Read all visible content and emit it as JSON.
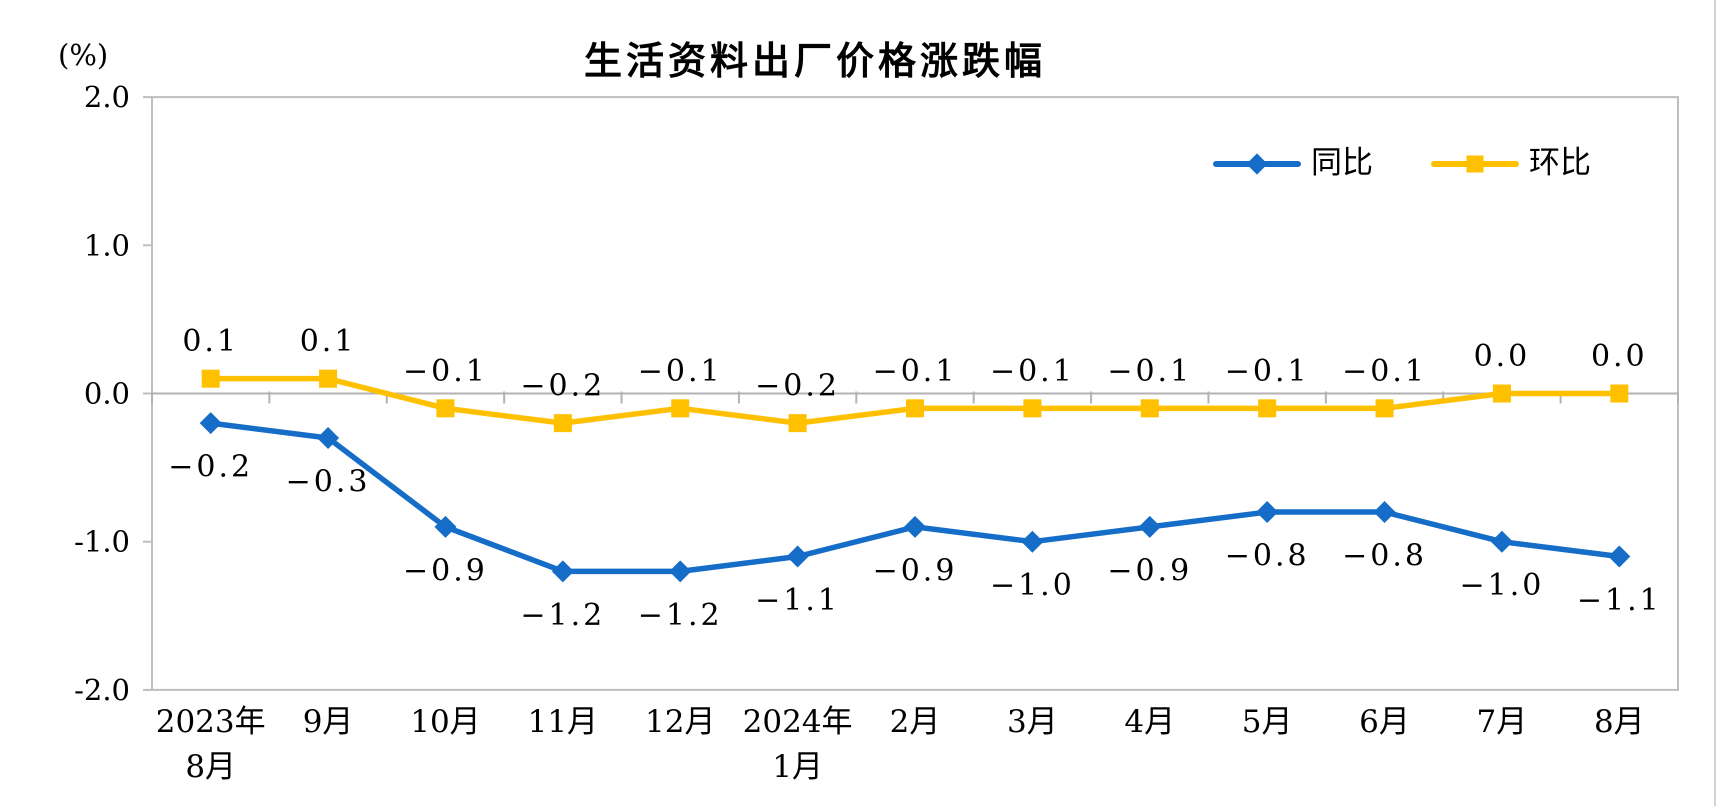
{
  "title": "生活资料出厂价格涨跌幅",
  "unit_label": "(%)",
  "chart_data": {
    "type": "line",
    "title": "生活资料出厂价格涨跌幅",
    "ylabel": "(%)",
    "categories": [
      "2023年\n8月",
      "9月",
      "10月",
      "11月",
      "12月",
      "2024年\n1月",
      "2月",
      "3月",
      "4月",
      "5月",
      "6月",
      "7月",
      "8月"
    ],
    "series": [
      {
        "name": "同比",
        "color": "#156DC8",
        "marker": "diamond",
        "label_position": "below",
        "values": [
          -0.2,
          -0.3,
          -0.9,
          -1.2,
          -1.2,
          -1.1,
          -0.9,
          -1.0,
          -0.9,
          -0.8,
          -0.8,
          -1.0,
          -1.1
        ]
      },
      {
        "name": "环比",
        "color": "#FFC000",
        "marker": "square",
        "label_position": "above",
        "values": [
          0.1,
          0.1,
          -0.1,
          -0.2,
          -0.1,
          -0.2,
          -0.1,
          -0.1,
          -0.1,
          -0.1,
          -0.1,
          0.0,
          0.0
        ]
      }
    ],
    "y_ticks": [
      "2.0",
      "1.0",
      "0.0",
      "-1.0",
      "-2.0"
    ],
    "ylim": [
      -2.0,
      2.0
    ],
    "grid": false,
    "legend_position": "top-right",
    "axis_color": "#BFBFBF",
    "zero_line_color": "#B3B3B3",
    "label_color": "#000000"
  }
}
